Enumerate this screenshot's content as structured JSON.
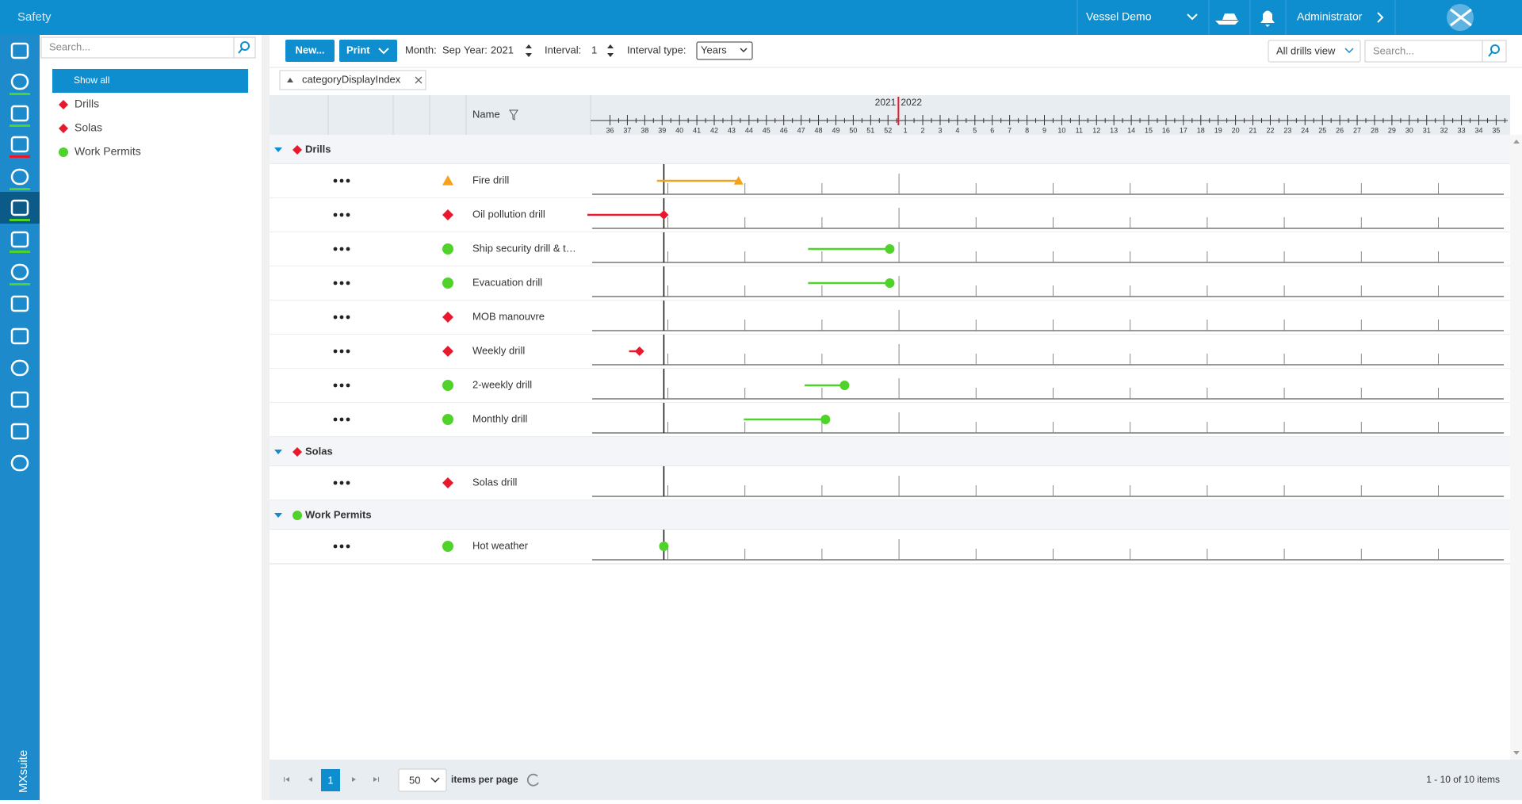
{
  "header": {
    "title": "Safety",
    "vessel": "Vessel Demo",
    "user": "Administrator"
  },
  "brand": "MXsuite",
  "sidebar": {
    "search_placeholder": "Search...",
    "items": [
      {
        "label": "Show all"
      },
      {
        "label": "Drills",
        "icon": "diamond",
        "color": "#e8192c"
      },
      {
        "label": "Solas",
        "icon": "diamond",
        "color": "#e8192c"
      },
      {
        "label": "Work Permits",
        "icon": "circle",
        "color": "#4fd32a"
      }
    ]
  },
  "toolbar": {
    "new": "New...",
    "print": "Print",
    "month_label": "Month:",
    "month": "Sep",
    "year_label": "Year:",
    "year": "2021",
    "interval_label": "Interval:",
    "interval": "1",
    "interval_type_label": "Interval type:",
    "interval_type": "Years",
    "view": "All drills view",
    "search_placeholder": "Search..."
  },
  "filter_chip": "categoryDisplayIndex",
  "grid": {
    "name_header": "Name",
    "years": [
      "2021",
      "2022"
    ],
    "weeks": [
      36,
      37,
      38,
      39,
      40,
      41,
      42,
      43,
      44,
      45,
      46,
      47,
      48,
      49,
      50,
      51,
      52,
      1,
      2,
      3,
      4,
      5,
      6,
      7,
      8,
      9,
      10,
      11,
      12,
      13,
      14,
      15,
      16,
      17,
      18,
      19,
      20,
      21,
      22,
      23,
      24,
      25,
      26,
      27,
      28,
      29,
      30,
      31,
      32,
      33,
      34,
      35
    ],
    "year_boundary_position": 16.6,
    "today_position": 3.1,
    "groups": [
      {
        "name": "Drills",
        "icon": "diamond",
        "color": "#e8192c",
        "rows": [
          {
            "name": "Fire drill",
            "icon": "triangle",
            "color": "#f5a21b",
            "start": 2.7,
            "end": 7.4
          },
          {
            "name": "Oil pollution drill",
            "icon": "diamond",
            "color": "#e8192c",
            "start": -1.3,
            "end": 3.1
          },
          {
            "name": "Ship security drill & t…",
            "icon": "circle",
            "color": "#4fd32a",
            "start": 11.4,
            "end": 16.1
          },
          {
            "name": "Evacuation drill",
            "icon": "circle",
            "color": "#4fd32a",
            "start": 11.4,
            "end": 16.1
          },
          {
            "name": "MOB manouvre",
            "icon": "diamond",
            "color": "#e8192c"
          },
          {
            "name": "Weekly drill",
            "icon": "diamond",
            "color": "#e8192c",
            "start": 1.1,
            "end": 1.7
          },
          {
            "name": "2-weekly drill",
            "icon": "circle",
            "color": "#4fd32a",
            "start": 11.2,
            "end": 13.5
          },
          {
            "name": "Monthly drill",
            "icon": "circle",
            "color": "#4fd32a",
            "start": 7.7,
            "end": 12.4
          }
        ]
      },
      {
        "name": "Solas",
        "icon": "diamond",
        "color": "#e8192c",
        "rows": [
          {
            "name": "Solas drill",
            "icon": "diamond",
            "color": "#e8192c"
          }
        ]
      },
      {
        "name": "Work Permits",
        "icon": "circle",
        "color": "#4fd32a",
        "rows": [
          {
            "name": "Hot weather",
            "icon": "circle",
            "color": "#4fd32a",
            "end": 3.1
          }
        ]
      }
    ]
  },
  "pager": {
    "page": "1",
    "page_size": "50",
    "page_size_label": "items per page",
    "summary": "1 - 10 of 10 items"
  }
}
